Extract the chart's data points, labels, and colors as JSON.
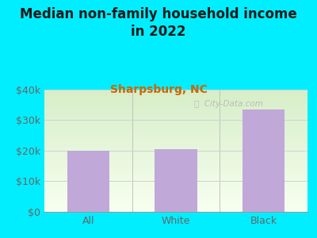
{
  "title": "Median non-family household income\nin 2022",
  "subtitle": "Sharpsburg, NC",
  "categories": [
    "All",
    "White",
    "Black"
  ],
  "values": [
    20000,
    20500,
    33500
  ],
  "bar_color": "#c0a8d8",
  "background_outer": "#00eeff",
  "background_inner_top": "#d6eec8",
  "background_inner_bottom": "#f8fff0",
  "ylim": [
    0,
    40000
  ],
  "yticks": [
    0,
    10000,
    20000,
    30000,
    40000
  ],
  "ytick_labels": [
    "$0",
    "$10k",
    "$20k",
    "$30k",
    "$40k"
  ],
  "title_fontsize": 12,
  "subtitle_fontsize": 10,
  "subtitle_color": "#cc6600",
  "title_color": "#1a1a1a",
  "tick_color": "#666666",
  "watermark": "City-Data.com",
  "grid_color": "#d0d0d0"
}
